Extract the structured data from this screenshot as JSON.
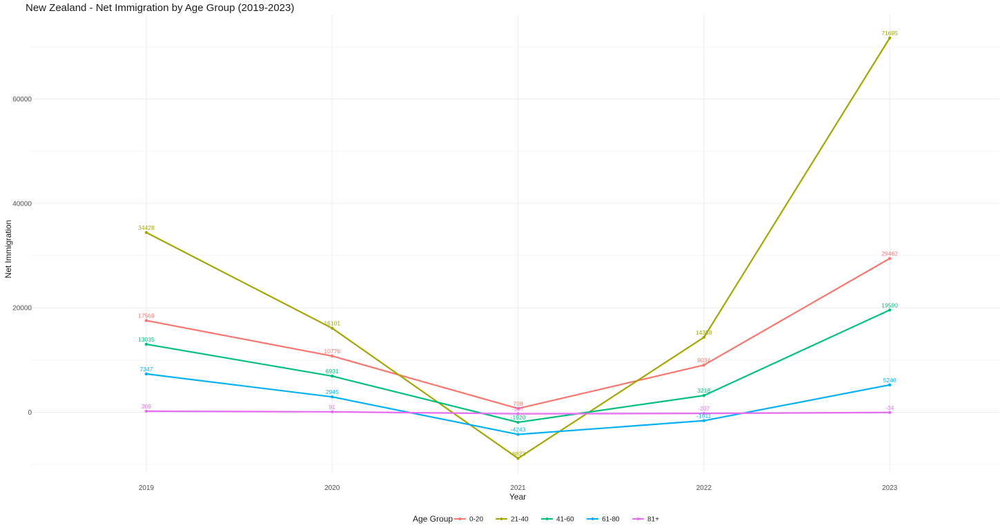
{
  "chart_data": {
    "type": "line",
    "title": "New Zealand - Net Immigration by Age Group (2019-2023)",
    "xlabel": "Year",
    "ylabel": "Net Immigration",
    "x": [
      "2019",
      "2020",
      "2021",
      "2022",
      "2023"
    ],
    "y_ticks": [
      0,
      20000,
      40000,
      60000
    ],
    "y_tick_labels": [
      "0",
      "20000",
      "40000",
      "60000"
    ],
    "ylim": [
      -11000,
      75000
    ],
    "grid": true,
    "legend": {
      "title": "Age Group",
      "position": "bottom"
    },
    "series": [
      {
        "name": "0-20",
        "color": "#F8766D",
        "values": [
          17569,
          10776,
          708,
          9034,
          29462
        ],
        "labels": [
          "17569",
          "10776",
          "708",
          "9034",
          "29462"
        ]
      },
      {
        "name": "21-40",
        "color": "#A3A500",
        "values": [
          34428,
          16101,
          -8823,
          14358,
          71695
        ],
        "labels": [
          "34428",
          "16101",
          "-8823",
          "14358",
          "71695"
        ]
      },
      {
        "name": "41-60",
        "color": "#00BF7D",
        "values": [
          13035,
          6931,
          -1920,
          3218,
          19590
        ],
        "labels": [
          "13035",
          "6931",
          "-1920",
          "3218",
          "19590"
        ]
      },
      {
        "name": "61-80",
        "color": "#00B0F6",
        "values": [
          7347,
          2945,
          -4243,
          -1611,
          5246
        ],
        "labels": [
          "7347",
          "2945",
          "-4243",
          "-1611",
          "5246"
        ]
      },
      {
        "name": "81+",
        "color": "#E76BF3",
        "values": [
          209,
          91,
          -297,
          -207,
          -34
        ],
        "labels": [
          "209",
          "91",
          "-297",
          "-207",
          "-34"
        ]
      }
    ]
  }
}
